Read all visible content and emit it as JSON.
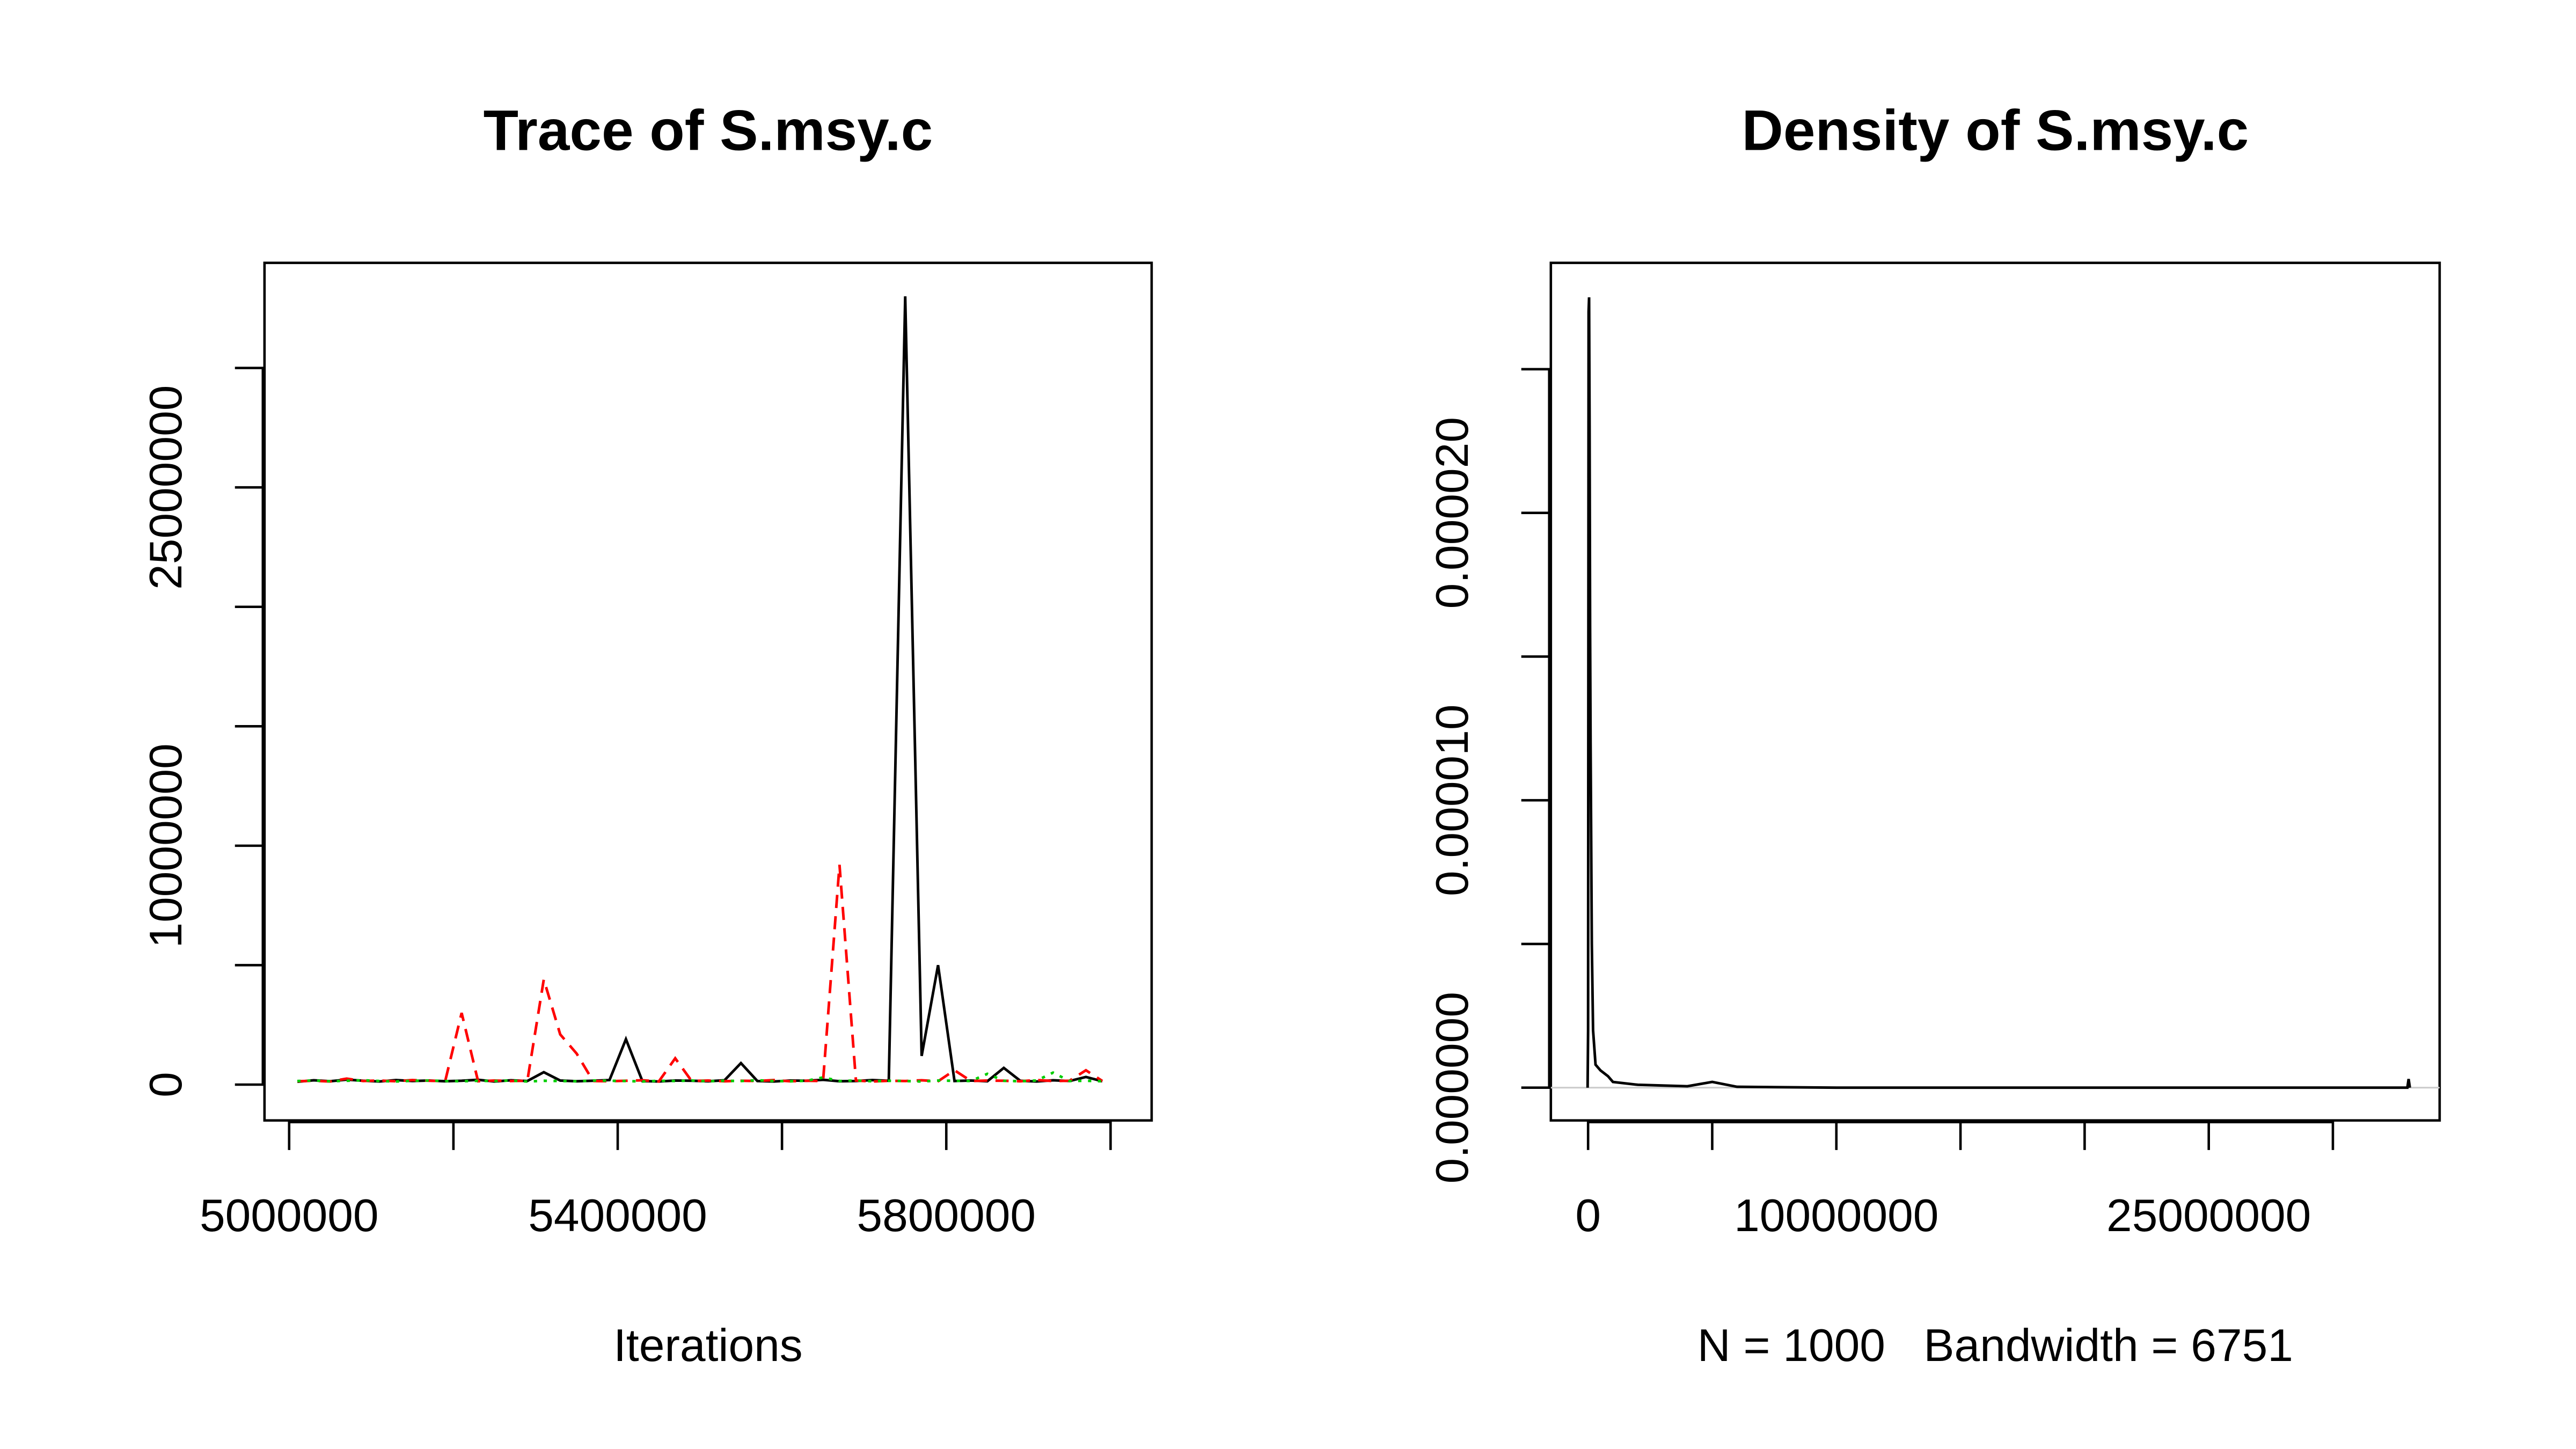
{
  "chart_data": [
    {
      "type": "line",
      "title": "Trace of S.msy.c",
      "xlabel": "Iterations",
      "x": [
        5010000,
        5030000,
        5050000,
        5070000,
        5090000,
        5110000,
        5130000,
        5150000,
        5170000,
        5190000,
        5210000,
        5230000,
        5250000,
        5270000,
        5290000,
        5310000,
        5330000,
        5350000,
        5370000,
        5390000,
        5410000,
        5430000,
        5450000,
        5470000,
        5490000,
        5510000,
        5530000,
        5550000,
        5570000,
        5590000,
        5610000,
        5630000,
        5650000,
        5670000,
        5690000,
        5710000,
        5730000,
        5750000,
        5770000,
        5790000,
        5810000,
        5830000,
        5850000,
        5870000,
        5890000,
        5910000,
        5930000,
        5950000,
        5970000,
        5990000
      ],
      "series": [
        {
          "color": "#000000",
          "dash": "solid",
          "values": [
            120000,
            180000,
            140000,
            210000,
            160000,
            130000,
            190000,
            150000,
            170000,
            140000,
            160000,
            200000,
            130000,
            180000,
            150000,
            520000,
            170000,
            140000,
            160000,
            190000,
            1900000,
            150000,
            130000,
            170000,
            160000,
            140000,
            180000,
            900000,
            150000,
            130000,
            170000,
            160000,
            200000,
            140000,
            150000,
            190000,
            160000,
            33000000,
            1200000,
            5000000,
            150000,
            170000,
            140000,
            700000,
            160000,
            130000,
            180000,
            150000,
            320000,
            140000
          ]
        },
        {
          "color": "#ff0000",
          "dash": "dashed",
          "values": [
            140000,
            160000,
            130000,
            250000,
            150000,
            170000,
            140000,
            190000,
            160000,
            150000,
            3000000,
            140000,
            170000,
            150000,
            160000,
            4400000,
            2100000,
            1300000,
            150000,
            140000,
            160000,
            180000,
            130000,
            1100000,
            150000,
            170000,
            140000,
            160000,
            150000,
            190000,
            140000,
            160000,
            150000,
            9200000,
            170000,
            130000,
            160000,
            150000,
            180000,
            140000,
            600000,
            150000,
            170000,
            160000,
            140000,
            190000,
            150000,
            160000,
            600000,
            150000
          ]
        },
        {
          "color": "#00cd00",
          "dash": "dotted",
          "values": [
            150000,
            170000,
            140000,
            160000,
            180000,
            150000,
            130000,
            160000,
            170000,
            150000,
            140000,
            160000,
            150000,
            170000,
            130000,
            160000,
            150000,
            140000,
            170000,
            160000,
            150000,
            130000,
            160000,
            150000,
            170000,
            140000,
            160000,
            150000,
            180000,
            150000,
            140000,
            160000,
            300000,
            150000,
            170000,
            140000,
            160000,
            150000,
            130000,
            170000,
            160000,
            150000,
            450000,
            160000,
            140000,
            170000,
            500000,
            150000,
            160000,
            140000
          ]
        }
      ],
      "xlim": [
        4970000,
        6050000
      ],
      "xticks": [
        5000000,
        {
          "value": 5200000,
          "label": null
        },
        5400000,
        {
          "value": 5600000,
          "label": null
        },
        5800000,
        {
          "value": 6000000,
          "label": null
        }
      ],
      "ylim": [
        -1500000,
        34400000
      ],
      "yticks": [
        0,
        {
          "value": 5000000,
          "label": null
        },
        10000000,
        {
          "value": 15000000,
          "label": null
        },
        {
          "value": 20000000,
          "label": null
        },
        25000000,
        {
          "value": 30000000,
          "label": null
        }
      ]
    },
    {
      "type": "line",
      "title": "Density of S.msy.c",
      "xlabel": "N = 1000   Bandwidth = 6751",
      "x": [
        -20000,
        0,
        20000,
        40000,
        60000,
        80000,
        100000,
        150000,
        200000,
        300000,
        500000,
        800000,
        1000000,
        2000000,
        4000000,
        5000000,
        6000000,
        10000000,
        33000000,
        33050000,
        33100000
      ],
      "series": [
        {
          "color": "#000000",
          "dash": "solid",
          "values": [
            0,
            2e-06,
            2.7e-05,
            2.75e-05,
            2.3e-05,
            1.6e-05,
            1.2e-05,
            5e-06,
            2e-06,
            8e-07,
            6e-07,
            4e-07,
            2e-07,
            1e-07,
            5e-08,
            2e-07,
            3e-08,
            0,
            0,
            3e-07,
            0
          ]
        }
      ],
      "xlim": [
        -1500000,
        34300000
      ],
      "xticks": [
        0,
        {
          "value": 5000000,
          "label": null
        },
        10000000,
        {
          "value": 15000000,
          "label": null
        },
        {
          "value": 20000000,
          "label": null
        },
        25000000,
        {
          "value": 30000000,
          "label": null
        }
      ],
      "ylim": [
        -1.14e-06,
        2.87e-05
      ],
      "yticks": [
        {
          "value": 0,
          "label": "0.000000"
        },
        {
          "value": 5e-06,
          "label": null
        },
        {
          "value": 1e-05,
          "label": "0.000010"
        },
        {
          "value": 1.5e-05,
          "label": null
        },
        {
          "value": 2e-05,
          "label": "0.000020"
        },
        {
          "value": 2.5e-05,
          "label": null
        }
      ]
    }
  ]
}
